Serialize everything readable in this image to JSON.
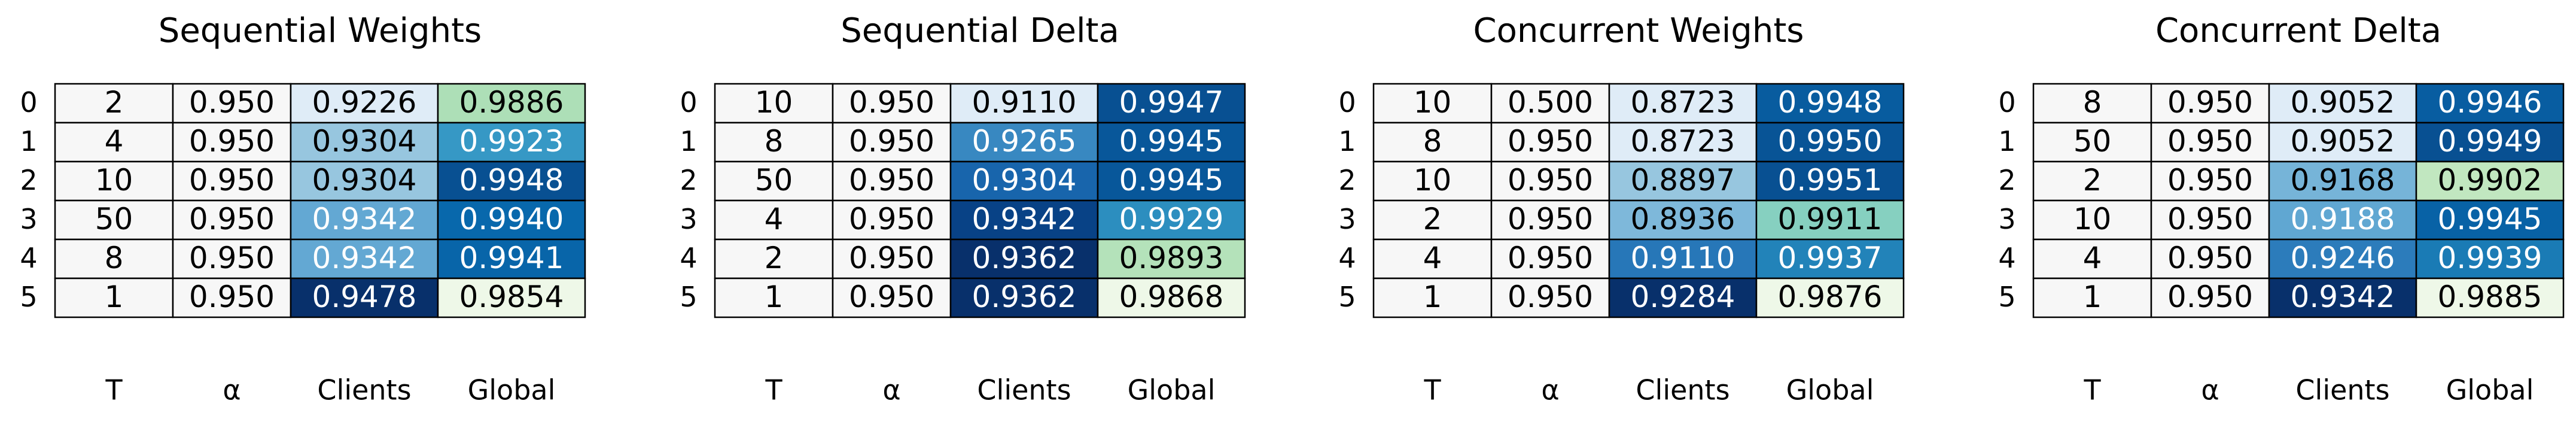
{
  "chart_data": [
    {
      "type": "table",
      "title": "Sequential Weights",
      "columns": [
        "T",
        "α",
        "Clients",
        "Global"
      ],
      "row_labels": [
        "0",
        "1",
        "2",
        "3",
        "4",
        "5"
      ],
      "rows": [
        {
          "T": 2,
          "alpha": "0.950",
          "clients": "0.9226",
          "global": "0.9886"
        },
        {
          "T": 4,
          "alpha": "0.950",
          "clients": "0.9304",
          "global": "0.9923"
        },
        {
          "T": 10,
          "alpha": "0.950",
          "clients": "0.9304",
          "global": "0.9948"
        },
        {
          "T": 50,
          "alpha": "0.950",
          "clients": "0.9342",
          "global": "0.9940"
        },
        {
          "T": 8,
          "alpha": "0.950",
          "clients": "0.9342",
          "global": "0.9941"
        },
        {
          "T": 1,
          "alpha": "0.950",
          "clients": "0.9478",
          "global": "0.9854"
        }
      ]
    },
    {
      "type": "table",
      "title": "Sequential Delta",
      "columns": [
        "T",
        "α",
        "Clients",
        "Global"
      ],
      "row_labels": [
        "0",
        "1",
        "2",
        "3",
        "4",
        "5"
      ],
      "rows": [
        {
          "T": 10,
          "alpha": "0.950",
          "clients": "0.9110",
          "global": "0.9947"
        },
        {
          "T": 8,
          "alpha": "0.950",
          "clients": "0.9265",
          "global": "0.9945"
        },
        {
          "T": 50,
          "alpha": "0.950",
          "clients": "0.9304",
          "global": "0.9945"
        },
        {
          "T": 4,
          "alpha": "0.950",
          "clients": "0.9342",
          "global": "0.9929"
        },
        {
          "T": 2,
          "alpha": "0.950",
          "clients": "0.9362",
          "global": "0.9893"
        },
        {
          "T": 1,
          "alpha": "0.950",
          "clients": "0.9362",
          "global": "0.9868"
        }
      ]
    },
    {
      "type": "table",
      "title": "Concurrent Weights",
      "columns": [
        "T",
        "α",
        "Clients",
        "Global"
      ],
      "row_labels": [
        "0",
        "1",
        "2",
        "3",
        "4",
        "5"
      ],
      "rows": [
        {
          "T": 10,
          "alpha": "0.500",
          "clients": "0.8723",
          "global": "0.9948"
        },
        {
          "T": 8,
          "alpha": "0.950",
          "clients": "0.8723",
          "global": "0.9950"
        },
        {
          "T": 10,
          "alpha": "0.950",
          "clients": "0.8897",
          "global": "0.9951"
        },
        {
          "T": 2,
          "alpha": "0.950",
          "clients": "0.8936",
          "global": "0.9911"
        },
        {
          "T": 4,
          "alpha": "0.950",
          "clients": "0.9110",
          "global": "0.9937"
        },
        {
          "T": 1,
          "alpha": "0.950",
          "clients": "0.9284",
          "global": "0.9876"
        }
      ]
    },
    {
      "type": "table",
      "title": "Concurrent Delta",
      "columns": [
        "T",
        "α",
        "Clients",
        "Global"
      ],
      "row_labels": [
        "0",
        "1",
        "2",
        "3",
        "4",
        "5"
      ],
      "rows": [
        {
          "T": 8,
          "alpha": "0.950",
          "clients": "0.9052",
          "global": "0.9946"
        },
        {
          "T": 50,
          "alpha": "0.950",
          "clients": "0.9052",
          "global": "0.9949"
        },
        {
          "T": 2,
          "alpha": "0.950",
          "clients": "0.9168",
          "global": "0.9902"
        },
        {
          "T": 10,
          "alpha": "0.950",
          "clients": "0.9188",
          "global": "0.9945"
        },
        {
          "T": 4,
          "alpha": "0.950",
          "clients": "0.9246",
          "global": "0.9939"
        },
        {
          "T": 1,
          "alpha": "0.950",
          "clients": "0.9342",
          "global": "0.9885"
        }
      ]
    }
  ]
}
